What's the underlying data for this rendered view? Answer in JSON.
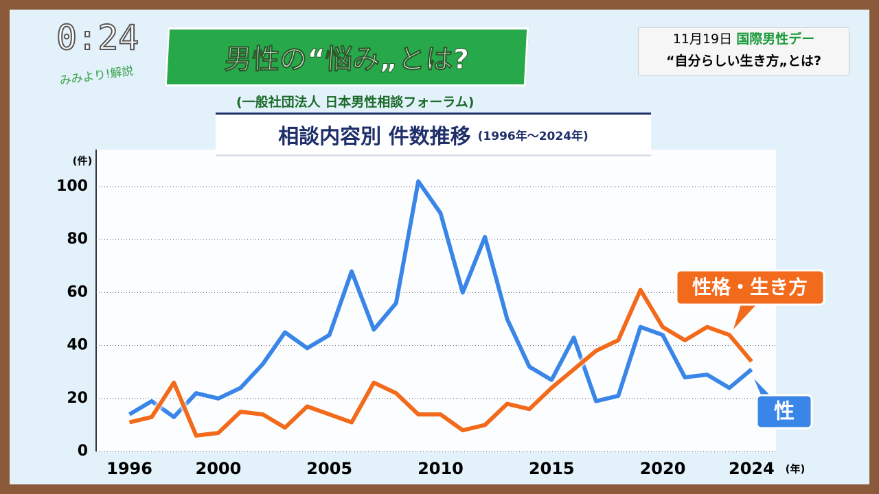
{
  "clock": "0:24",
  "corner_logo": "みみより!解説",
  "headline": "男性の“悩み„とは?",
  "source": "(一般社団法人 日本男性相談フォーラム)",
  "topic": {
    "date": "11月19日",
    "event": "国際男性デー",
    "theme": "“自分らしい生き方„とは?"
  },
  "chart_data": {
    "type": "line",
    "title": "相談内容別 件数推移",
    "subtitle": "(1996年〜2024年)",
    "y_label": "(件)",
    "x_label": "(年)",
    "x": [
      1996,
      1997,
      1998,
      1999,
      2000,
      2001,
      2002,
      2003,
      2004,
      2005,
      2006,
      2007,
      2008,
      2009,
      2010,
      2011,
      2012,
      2013,
      2014,
      2015,
      2016,
      2017,
      2018,
      2019,
      2020,
      2021,
      2022,
      2023,
      2024
    ],
    "series": [
      {
        "name": "性",
        "color": "#3a86e8",
        "values": [
          14,
          19,
          13,
          22,
          20,
          24,
          33,
          45,
          39,
          44,
          68,
          46,
          56,
          102,
          90,
          60,
          81,
          50,
          32,
          27,
          43,
          19,
          21,
          47,
          44,
          28,
          29,
          24,
          31
        ]
      },
      {
        "name": "性格・生き方",
        "color": "#f26a1b",
        "values": [
          11,
          13,
          26,
          6,
          7,
          15,
          14,
          9,
          17,
          14,
          11,
          26,
          22,
          14,
          14,
          8,
          10,
          18,
          16,
          24,
          31,
          38,
          42,
          61,
          47,
          42,
          47,
          44,
          34
        ]
      }
    ],
    "xlim": [
      1994.5,
      2025.1
    ],
    "xticks": [
      1996,
      2000,
      2005,
      2010,
      2015,
      2020,
      2024
    ],
    "ylim": [
      0,
      114
    ],
    "yticks": [
      0,
      20,
      40,
      60,
      80,
      100
    ],
    "grid": true
  }
}
